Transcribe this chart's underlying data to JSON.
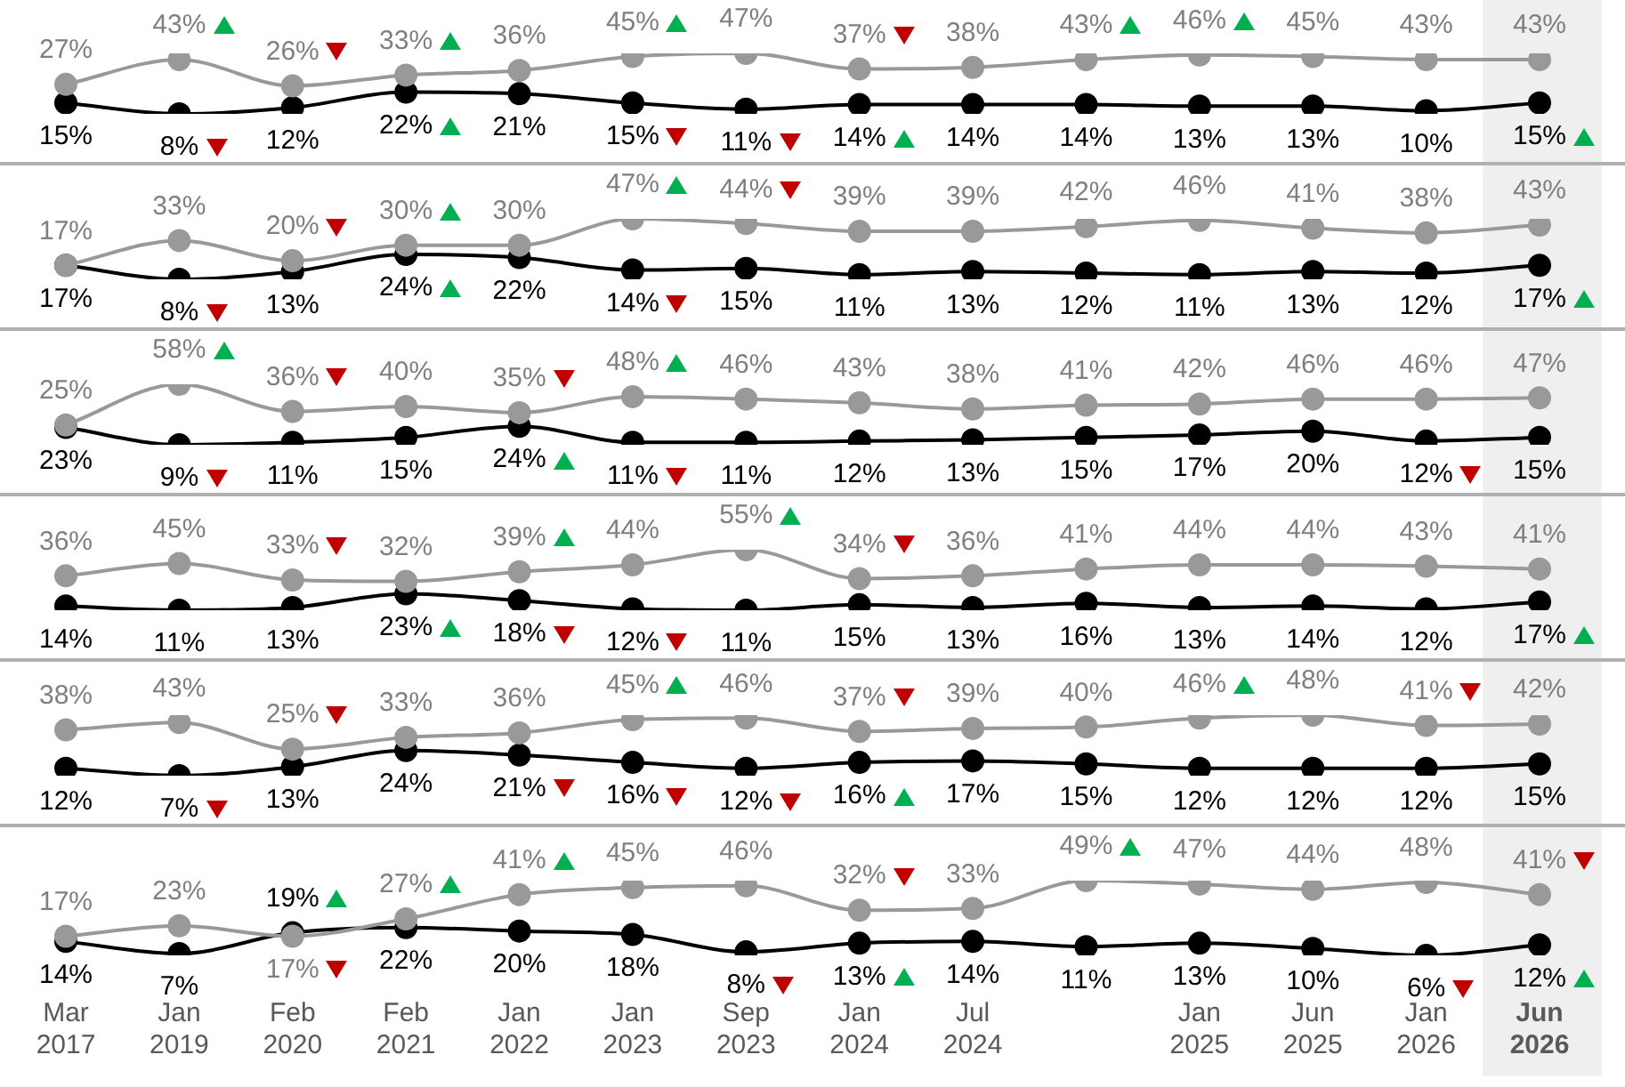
{
  "chart_data": [
    {
      "type": "line",
      "categories": [
        "Mar 2017",
        "Jan 2019",
        "Feb 2020",
        "Feb 2021",
        "Jan 2022",
        "Jan 2023",
        "Sep 2023",
        "Jan 2024",
        "Jul 2024",
        null,
        "Jan 2025",
        "Jun 2025",
        "Jan 2026",
        "Jun 2026"
      ],
      "tick_labels": false,
      "marker": "circle",
      "bands": [
        {
          "axis": "x",
          "from": "Jun 2026",
          "to": "Jun 2026",
          "color": "#efefef"
        }
      ],
      "series": [
        {
          "color": "#999999",
          "values": [
            27,
            43,
            26,
            33,
            36,
            45,
            47,
            37,
            38,
            43,
            46,
            45,
            43,
            43
          ],
          "value_labels": [
            "27%",
            "43%",
            "26%",
            "33%",
            "36%",
            "45%",
            "47%",
            "37%",
            "38%",
            "43%",
            "46%",
            "45%",
            "43%",
            "43%"
          ]
        },
        {
          "color": "#000000",
          "values": [
            15,
            8,
            12,
            22,
            21,
            15,
            11,
            14,
            14,
            14,
            13,
            13,
            10,
            15
          ],
          "value_labels": [
            "15%",
            "8%",
            "12%",
            "22%",
            "21%",
            "15%",
            "11%",
            "14%",
            "14%",
            "14%",
            "13%",
            "13%",
            "10%",
            "15%"
          ]
        }
      ]
    },
    {
      "type": "line",
      "categories": [
        "Mar 2017",
        "Jan 2019",
        "Feb 2020",
        "Feb 2021",
        "Jan 2022",
        "Jan 2023",
        "Sep 2023",
        "Jan 2024",
        "Jul 2024",
        null,
        "Jan 2025",
        "Jun 2025",
        "Jan 2026",
        "Jun 2026"
      ],
      "tick_labels": false,
      "marker": "circle",
      "bands": [
        {
          "axis": "x",
          "from": "Jun 2026",
          "to": "Jun 2026",
          "color": "#efefef"
        }
      ],
      "series": [
        {
          "color": "#999999",
          "values": [
            17,
            33,
            20,
            30,
            30,
            47,
            44,
            39,
            39,
            42,
            46,
            41,
            38,
            43
          ],
          "value_labels": [
            "17%",
            "33%",
            "20%",
            "30%",
            "30%",
            "47%",
            "44%",
            "39%",
            "39%",
            "42%",
            "46%",
            "41%",
            "38%",
            "43%"
          ]
        },
        {
          "color": "#000000",
          "values": [
            17,
            8,
            13,
            24,
            22,
            14,
            15,
            11,
            13,
            12,
            11,
            13,
            12,
            17
          ],
          "value_labels": [
            "17%",
            "8%",
            "13%",
            "24%",
            "22%",
            "14%",
            "15%",
            "11%",
            "13%",
            "12%",
            "11%",
            "13%",
            "12%",
            "17%"
          ]
        }
      ]
    },
    {
      "type": "line",
      "categories": [
        "Mar 2017",
        "Jan 2019",
        "Feb 2020",
        "Feb 2021",
        "Jan 2022",
        "Jan 2023",
        "Sep 2023",
        "Jan 2024",
        "Jul 2024",
        null,
        "Jan 2025",
        "Jun 2025",
        "Jan 2026",
        "Jun 2026"
      ],
      "tick_labels": false,
      "marker": "circle",
      "bands": [
        {
          "axis": "x",
          "from": "Jun 2026",
          "to": "Jun 2026",
          "color": "#efefef"
        }
      ],
      "series": [
        {
          "color": "#999999",
          "values": [
            25,
            58,
            36,
            40,
            35,
            48,
            46,
            43,
            38,
            41,
            42,
            46,
            46,
            47
          ],
          "value_labels": [
            "25%",
            "58%",
            "36%",
            "40%",
            "35%",
            "48%",
            "46%",
            "43%",
            "38%",
            "41%",
            "42%",
            "46%",
            "46%",
            "47%"
          ]
        },
        {
          "color": "#000000",
          "values": [
            23,
            9,
            11,
            15,
            24,
            11,
            11,
            12,
            13,
            15,
            17,
            20,
            12,
            15
          ],
          "value_labels": [
            "23%",
            "9%",
            "11%",
            "15%",
            "24%",
            "11%",
            "11%",
            "12%",
            "13%",
            "15%",
            "17%",
            "20%",
            "12%",
            "15%"
          ]
        }
      ]
    },
    {
      "type": "line",
      "categories": [
        "Mar 2017",
        "Jan 2019",
        "Feb 2020",
        "Feb 2021",
        "Jan 2022",
        "Jan 2023",
        "Sep 2023",
        "Jan 2024",
        "Jul 2024",
        null,
        "Jan 2025",
        "Jun 2025",
        "Jan 2026",
        "Jun 2026"
      ],
      "tick_labels": false,
      "marker": "circle",
      "bands": [
        {
          "axis": "x",
          "from": "Jun 2026",
          "to": "Jun 2026",
          "color": "#efefef"
        }
      ],
      "series": [
        {
          "color": "#999999",
          "values": [
            36,
            45,
            33,
            32,
            39,
            44,
            55,
            34,
            36,
            41,
            44,
            44,
            43,
            41
          ],
          "value_labels": [
            "36%",
            "45%",
            "33%",
            "32%",
            "39%",
            "44%",
            "55%",
            "34%",
            "36%",
            "41%",
            "44%",
            "44%",
            "43%",
            "41%"
          ]
        },
        {
          "color": "#000000",
          "values": [
            14,
            11,
            13,
            23,
            18,
            12,
            11,
            15,
            13,
            16,
            13,
            14,
            12,
            17
          ],
          "value_labels": [
            "14%",
            "11%",
            "13%",
            "23%",
            "18%",
            "12%",
            "11%",
            "15%",
            "13%",
            "16%",
            "13%",
            "14%",
            "12%",
            "17%"
          ]
        }
      ]
    },
    {
      "type": "line",
      "categories": [
        "Mar 2017",
        "Jan 2019",
        "Feb 2020",
        "Feb 2021",
        "Jan 2022",
        "Jan 2023",
        "Sep 2023",
        "Jan 2024",
        "Jul 2024",
        null,
        "Jan 2025",
        "Jun 2025",
        "Jan 2026",
        "Jun 2026"
      ],
      "tick_labels": false,
      "marker": "circle",
      "bands": [
        {
          "axis": "x",
          "from": "Jun 2026",
          "to": "Jun 2026",
          "color": "#efefef"
        }
      ],
      "series": [
        {
          "color": "#999999",
          "values": [
            38,
            43,
            25,
            33,
            36,
            45,
            46,
            37,
            39,
            40,
            46,
            48,
            41,
            42
          ],
          "value_labels": [
            "38%",
            "43%",
            "25%",
            "33%",
            "36%",
            "45%",
            "46%",
            "37%",
            "39%",
            "40%",
            "46%",
            "48%",
            "41%",
            "42%"
          ]
        },
        {
          "color": "#000000",
          "values": [
            12,
            7,
            13,
            24,
            21,
            16,
            12,
            16,
            17,
            15,
            12,
            12,
            12,
            15
          ],
          "value_labels": [
            "12%",
            "7%",
            "13%",
            "24%",
            "21%",
            "16%",
            "12%",
            "16%",
            "17%",
            "15%",
            "12%",
            "12%",
            "12%",
            "15%"
          ]
        }
      ]
    },
    {
      "type": "line",
      "categories": [
        "Mar 2017",
        "Jan 2019",
        "Feb 2020",
        "Feb 2021",
        "Jan 2022",
        "Jan 2023",
        "Sep 2023",
        "Jan 2024",
        "Jul 2024",
        null,
        "Jan 2025",
        "Jun 2025",
        "Jan 2026",
        "Jun 2026"
      ],
      "tick_labels": "x",
      "marker": "circle",
      "bands": [
        {
          "axis": "x",
          "from": "Jun 2026",
          "to": "Jun 2026",
          "color": "#efefef"
        }
      ],
      "series": [
        {
          "color": "#999999",
          "values": [
            17,
            23,
            17,
            27,
            41,
            45,
            46,
            32,
            33,
            49,
            47,
            44,
            48,
            41
          ],
          "value_labels": [
            "17%",
            "23%",
            "17%",
            "27%",
            "41%",
            "45%",
            "46%",
            "32%",
            "33%",
            "49%",
            "47%",
            "44%",
            "48%",
            "41%"
          ]
        },
        {
          "color": "#000000",
          "values": [
            14,
            7,
            19,
            22,
            20,
            18,
            8,
            13,
            14,
            11,
            13,
            10,
            6,
            12
          ],
          "value_labels": [
            "14%",
            "7%",
            "19%",
            "22%",
            "20%",
            "18%",
            "8%",
            "13%",
            "14%",
            "11%",
            "13%",
            "10%",
            "6%",
            "12%"
          ]
        }
      ]
    }
  ]
}
